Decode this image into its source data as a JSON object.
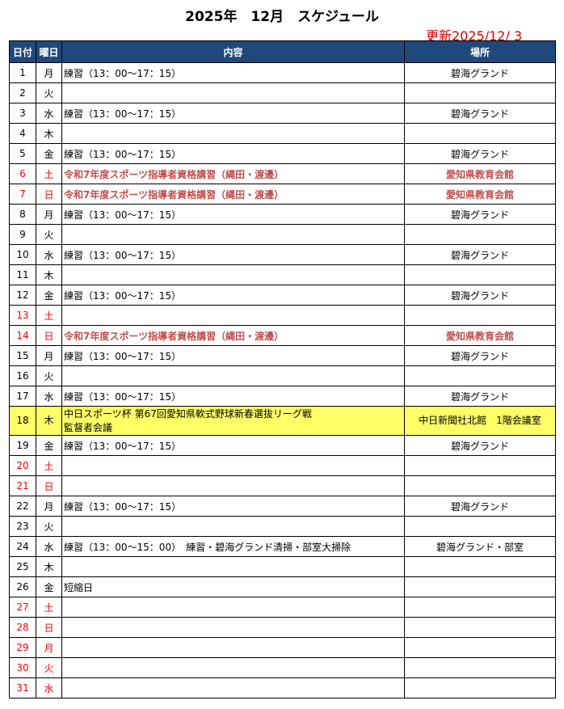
{
  "title": "2025年　12月　スケジュール",
  "updated": "更新2025/12/ 3",
  "headers": {
    "date": "日付",
    "day": "曜日",
    "content": "内容",
    "place": "場所"
  },
  "rows": [
    {
      "date": "1",
      "day": "月",
      "content": "練習（13：00～17：15）",
      "place": "碧海グランド"
    },
    {
      "date": "2",
      "day": "火",
      "content": "",
      "place": ""
    },
    {
      "date": "3",
      "day": "水",
      "content": "練習（13：00～17：15）",
      "place": "碧海グランド"
    },
    {
      "date": "4",
      "day": "木",
      "content": "",
      "place": ""
    },
    {
      "date": "5",
      "day": "金",
      "content": "練習（13：00～17：15）",
      "place": "碧海グランド"
    },
    {
      "date": "6",
      "day": "土",
      "content": "令和7年度スポーツ指導者資格講習（縄田・渡邊）",
      "place": "愛知県教育会館",
      "red": true,
      "event": true
    },
    {
      "date": "7",
      "day": "日",
      "content": "令和7年度スポーツ指導者資格講習（縄田・渡邊）",
      "place": "愛知県教育会館",
      "red": true,
      "event": true
    },
    {
      "date": "8",
      "day": "月",
      "content": "練習（13：00～17：15）",
      "place": "碧海グランド"
    },
    {
      "date": "9",
      "day": "火",
      "content": "",
      "place": ""
    },
    {
      "date": "10",
      "day": "水",
      "content": "練習（13：00～17：15）",
      "place": "碧海グランド"
    },
    {
      "date": "11",
      "day": "木",
      "content": "",
      "place": ""
    },
    {
      "date": "12",
      "day": "金",
      "content": "練習（13：00～17：15）",
      "place": "碧海グランド"
    },
    {
      "date": "13",
      "day": "土",
      "content": "",
      "place": "",
      "red": true
    },
    {
      "date": "14",
      "day": "日",
      "content": "令和7年度スポーツ指導者資格講習（縄田・渡邊）",
      "place": "愛知県教育会館",
      "red": true,
      "event": true
    },
    {
      "date": "15",
      "day": "月",
      "content": "練習（13：00～17：15）",
      "place": "碧海グランド"
    },
    {
      "date": "16",
      "day": "火",
      "content": "",
      "place": ""
    },
    {
      "date": "17",
      "day": "水",
      "content": "練習（13：00～17：15）",
      "place": "碧海グランド"
    },
    {
      "date": "18",
      "day": "木",
      "content": "中日スポーツ杯 第67回愛知県軟式野球新春選抜リーグ戦",
      "content2": "監督者会議",
      "place": "中日新聞社北館　1階会議室",
      "highlight": true
    },
    {
      "date": "19",
      "day": "金",
      "content": "練習（13：00～17：15）",
      "place": "碧海グランド"
    },
    {
      "date": "20",
      "day": "土",
      "content": "",
      "place": "",
      "red": true
    },
    {
      "date": "21",
      "day": "日",
      "content": "",
      "place": "",
      "red": true
    },
    {
      "date": "22",
      "day": "月",
      "content": "練習（13：00～17：15）",
      "place": "碧海グランド"
    },
    {
      "date": "23",
      "day": "火",
      "content": "",
      "place": ""
    },
    {
      "date": "24",
      "day": "水",
      "content": "練習（13：00～15：00）　練習・碧海グランド清掃・部室大掃除",
      "place": "碧海グランド・部室"
    },
    {
      "date": "25",
      "day": "木",
      "content": "",
      "place": ""
    },
    {
      "date": "26",
      "day": "金",
      "content": "短縮日",
      "place": ""
    },
    {
      "date": "27",
      "day": "土",
      "content": "",
      "place": "",
      "red": true
    },
    {
      "date": "28",
      "day": "日",
      "content": "",
      "place": "",
      "red": true
    },
    {
      "date": "29",
      "day": "月",
      "content": "",
      "place": "",
      "red": true
    },
    {
      "date": "30",
      "day": "火",
      "content": "",
      "place": "",
      "red": true
    },
    {
      "date": "31",
      "day": "水",
      "content": "",
      "place": "",
      "red": true
    }
  ],
  "colors": {
    "header_bg": "#1f497d",
    "holiday": "#ff0000",
    "event": "#c0504d",
    "highlight": "#ffff66"
  }
}
